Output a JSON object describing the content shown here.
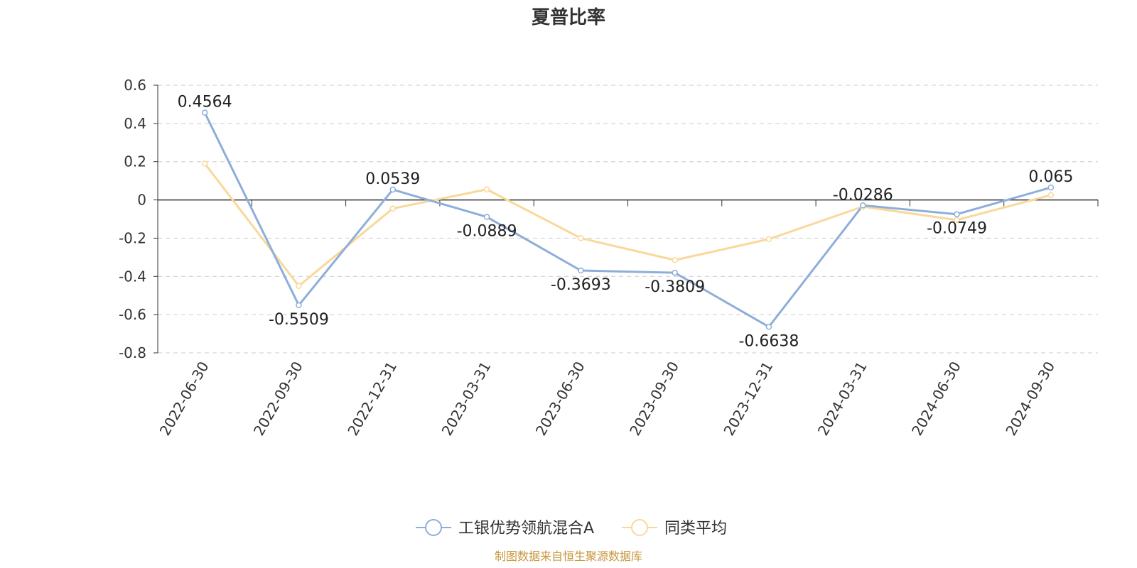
{
  "chart_data": {
    "type": "line",
    "title": "夏普比率",
    "x": [
      "2022-06-30",
      "2022-09-30",
      "2022-12-31",
      "2023-03-31",
      "2023-06-30",
      "2023-09-30",
      "2023-12-31",
      "2024-03-31",
      "2024-06-30",
      "2024-09-30"
    ],
    "ylim": [
      -0.8,
      0.6
    ],
    "yticks": [
      0.6,
      0.4,
      0.2,
      0,
      -0.2,
      -0.4,
      -0.6,
      -0.8
    ],
    "grid": true,
    "legend_position": "bottom-center",
    "series": [
      {
        "name": "工银优势领航混合A",
        "color": "#8eaed9",
        "values": [
          0.4564,
          -0.5509,
          0.0539,
          -0.0889,
          -0.3693,
          -0.3809,
          -0.6638,
          -0.0286,
          -0.0749,
          0.065
        ],
        "labels": [
          "0.4564",
          "-0.5509",
          "0.0539",
          "-0.0889",
          "-0.3693",
          "-0.3809",
          "-0.6638",
          "-0.0286",
          "-0.0749",
          "0.065"
        ]
      },
      {
        "name": "同类平均",
        "color": "#f9d89a",
        "values": [
          0.19,
          -0.45,
          -0.045,
          0.055,
          -0.2,
          -0.315,
          -0.205,
          -0.035,
          -0.105,
          0.025
        ]
      }
    ]
  },
  "source_text": "制图数据来自恒生聚源数据库"
}
